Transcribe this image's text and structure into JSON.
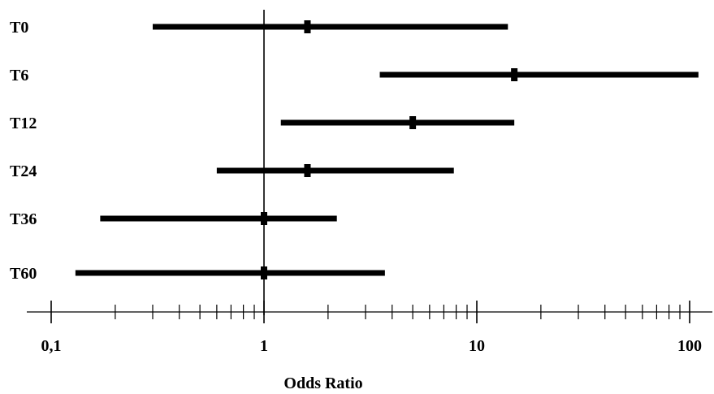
{
  "chart_data": {
    "type": "forest",
    "title": "",
    "xlabel": "Odds Ratio",
    "ylabel": "",
    "xscale": "log",
    "xlim": [
      0.1,
      100
    ],
    "reference_line": 1,
    "x_tick_labels": [
      "0,1",
      "1",
      "10",
      "100"
    ],
    "major_ticks": [
      0.1,
      1,
      10,
      100
    ],
    "rows": [
      {
        "label": "T0",
        "estimate": 1.6,
        "lower": 0.3,
        "upper": 14
      },
      {
        "label": "T6",
        "estimate": 15,
        "lower": 3.5,
        "upper": 110
      },
      {
        "label": "T12",
        "estimate": 5,
        "lower": 1.2,
        "upper": 15
      },
      {
        "label": "T24",
        "estimate": 1.6,
        "lower": 0.6,
        "upper": 7.8
      },
      {
        "label": "T36",
        "estimate": 1.0,
        "lower": 0.17,
        "upper": 2.2
      },
      {
        "label": "T60",
        "estimate": 1.0,
        "lower": 0.13,
        "upper": 3.7
      }
    ]
  }
}
